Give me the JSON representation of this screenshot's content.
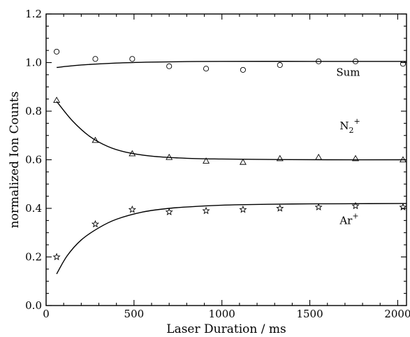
{
  "chart_data": {
    "type": "scatter",
    "title": "",
    "xlabel": "Laser Duration / ms",
    "ylabel": "normalized Ion Counts",
    "xlim": [
      0,
      2050
    ],
    "ylim": [
      0.0,
      1.2
    ],
    "xticks": [
      0,
      500,
      1000,
      1500,
      2000
    ],
    "yticks": [
      0.0,
      0.2,
      0.4,
      0.6,
      0.8,
      1.0,
      1.2
    ],
    "xtick_labels": [
      "0",
      "500",
      "1000",
      "1500",
      "2000"
    ],
    "ytick_labels": [
      "0.0",
      "0.2",
      "0.4",
      "0.6",
      "0.8",
      "1.0",
      "1.2"
    ],
    "grid": false,
    "legend": "none",
    "series": [
      {
        "name": "Sum",
        "marker": "circle",
        "x": [
          60,
          280,
          490,
          700,
          910,
          1120,
          1330,
          1550,
          1760,
          2030
        ],
        "y": [
          1.045,
          1.015,
          1.015,
          0.985,
          0.975,
          0.97,
          0.99,
          1.005,
          1.005,
          0.995
        ],
        "fit": {
          "x": [
            60,
            200,
            400,
            600,
            800,
            1000,
            1500,
            2050
          ],
          "y": [
            0.98,
            0.99,
            0.998,
            1.002,
            1.004,
            1.005,
            1.005,
            1.005
          ]
        }
      },
      {
        "name": "N",
        "name_sub": "2",
        "name_sup": "+",
        "marker": "triangle",
        "x": [
          60,
          280,
          490,
          700,
          910,
          1120,
          1330,
          1550,
          1760,
          2030
        ],
        "y": [
          0.845,
          0.68,
          0.625,
          0.61,
          0.595,
          0.59,
          0.605,
          0.61,
          0.605,
          0.6
        ],
        "fit": {
          "x": [
            60,
            150,
            250,
            350,
            450,
            600,
            800,
            1000,
            1300,
            1600,
            2050
          ],
          "y": [
            0.84,
            0.76,
            0.695,
            0.655,
            0.632,
            0.615,
            0.606,
            0.603,
            0.601,
            0.6,
            0.6
          ]
        }
      },
      {
        "name": "Ar",
        "name_sup": "+",
        "marker": "star",
        "x": [
          60,
          280,
          490,
          700,
          910,
          1120,
          1330,
          1550,
          1760,
          2030
        ],
        "y": [
          0.2,
          0.335,
          0.395,
          0.385,
          0.39,
          0.395,
          0.4,
          0.405,
          0.41,
          0.405
        ],
        "fit": {
          "x": [
            60,
            120,
            200,
            300,
            400,
            550,
            700,
            900,
            1100,
            1400,
            1700,
            2050
          ],
          "y": [
            0.13,
            0.205,
            0.27,
            0.32,
            0.355,
            0.385,
            0.4,
            0.41,
            0.415,
            0.418,
            0.419,
            0.42
          ]
        }
      }
    ]
  }
}
